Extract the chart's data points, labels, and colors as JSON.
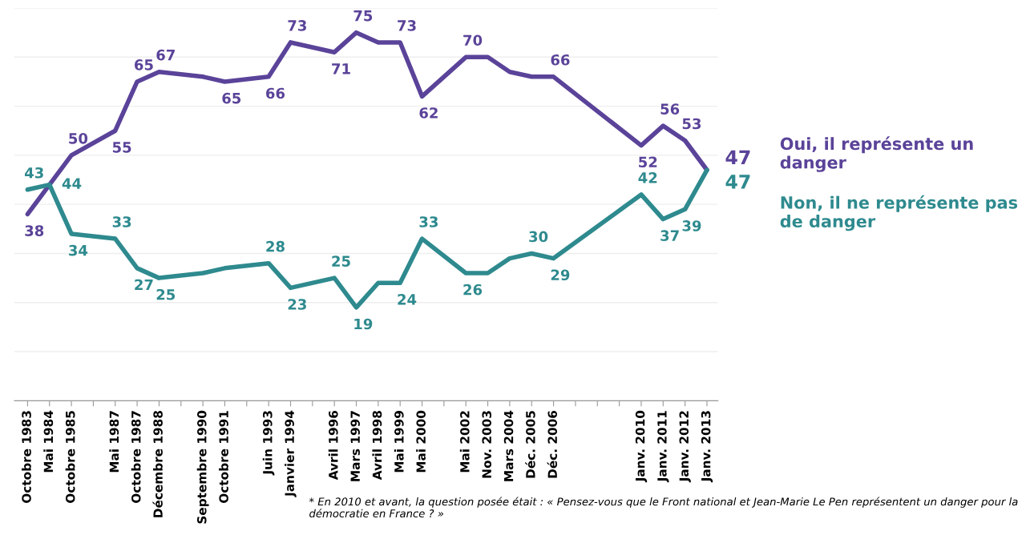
{
  "chart_data": {
    "type": "line",
    "categories": [
      "Octobre 1983",
      "Mai 1984",
      "Octobre 1985",
      null,
      "Mai 1987",
      "Octobre 1987",
      "Décembre 1988",
      null,
      "Septembre 1990",
      "Octobre 1991",
      null,
      "Juin 1993",
      "Janvier 1994",
      null,
      "Avril 1996",
      "Mars 1997",
      "Avril 1998",
      "Mai 1999",
      "Mai 2000",
      null,
      "Mai 2002",
      "Nov. 2003",
      "Mars 2004",
      "Déc. 2005",
      "Déc. 2006",
      null,
      null,
      null,
      "Janv. 2010",
      "Janv. 2011",
      "Janv. 2012",
      "Janv. 2013"
    ],
    "series": [
      {
        "name": "Oui, il représente un danger",
        "color": "#5a4399",
        "values": [
          38,
          44,
          50,
          null,
          55,
          65,
          67,
          null,
          66,
          65,
          null,
          66,
          73,
          null,
          71,
          75,
          73,
          73,
          62,
          null,
          70,
          70,
          67,
          66,
          66,
          null,
          null,
          null,
          52,
          56,
          53,
          47
        ],
        "value_labels": [
          "38",
          null,
          "50",
          null,
          "55",
          "65",
          "67",
          null,
          null,
          "65",
          null,
          "66",
          "73",
          null,
          "71",
          "75",
          null,
          "73",
          "62",
          null,
          "70",
          null,
          null,
          null,
          "66",
          null,
          null,
          null,
          "52",
          "56",
          "53",
          "47"
        ]
      },
      {
        "name": "Non, il ne représente pas de danger",
        "color": "#2e8a8e",
        "values": [
          43,
          44,
          34,
          null,
          33,
          27,
          25,
          null,
          26,
          27,
          null,
          28,
          23,
          null,
          25,
          19,
          24,
          24,
          33,
          null,
          26,
          26,
          29,
          30,
          29,
          null,
          null,
          null,
          42,
          37,
          39,
          47
        ],
        "value_labels": [
          "43",
          "44",
          "34",
          null,
          "33",
          "27",
          "25",
          null,
          null,
          null,
          null,
          "28",
          "23",
          null,
          "25",
          "19",
          null,
          "24",
          "33",
          null,
          "26",
          null,
          null,
          "30",
          "29",
          null,
          null,
          null,
          "42",
          "37",
          "39",
          "47"
        ]
      }
    ],
    "ylim": [
      0,
      80
    ],
    "yticks": [
      {
        "value": 0,
        "label": null
      },
      {
        "value": 10,
        "label": null
      },
      {
        "value": 20,
        "label": null
      },
      {
        "value": 30,
        "label": null
      },
      {
        "value": 40,
        "label": null
      },
      {
        "value": 50,
        "label": null
      },
      {
        "value": 60,
        "label": null
      },
      {
        "value": 70,
        "label": null
      },
      {
        "value": 80,
        "label": null
      }
    ],
    "grid": "y",
    "tick_labels": "x",
    "legend": false,
    "annotations": [
      "* En 2010 et avant, la question posée était : « Pensez-vous que le Front national et Jean-Marie Le Pen représentent un danger pour la démocratie en France ? »"
    ]
  }
}
